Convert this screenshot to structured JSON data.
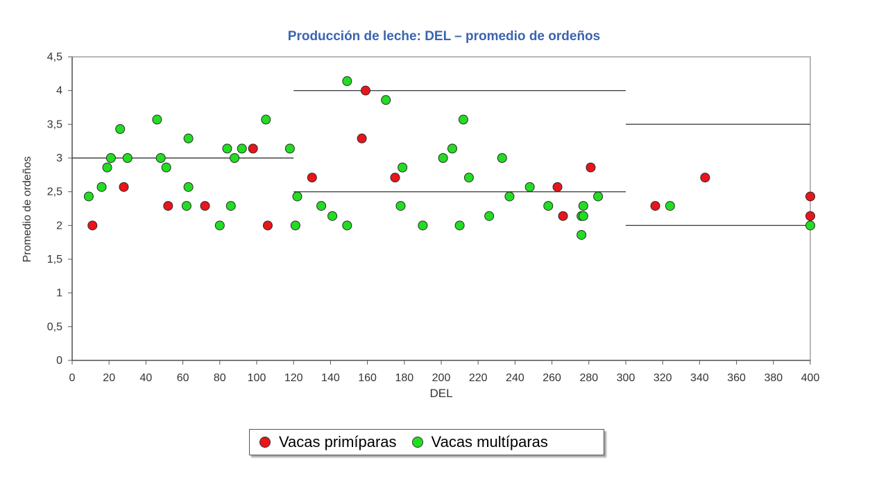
{
  "chart_data": {
    "type": "scatter",
    "title": "Producción de leche: DEL – promedio de ordeños",
    "xlabel": "DEL",
    "ylabel": "Promedio de ordeños",
    "xlim": [
      0,
      400
    ],
    "ylim": [
      0,
      4.5
    ],
    "x_ticks": [
      "0",
      "20",
      "40",
      "60",
      "80",
      "100",
      "120",
      "140",
      "160",
      "180",
      "200",
      "220",
      "240",
      "260",
      "280",
      "300",
      "320",
      "340",
      "360",
      "380",
      "400"
    ],
    "y_ticks": [
      "0",
      "0,5",
      "1",
      "1,5",
      "2",
      "2,5",
      "3",
      "3,5",
      "4",
      "4,5"
    ],
    "grid": false,
    "legend_position": "bottom-center",
    "series": [
      {
        "name": "Vacas primíparas",
        "color": "#e8151b",
        "points": [
          [
            11,
            2.0
          ],
          [
            28,
            2.57
          ],
          [
            52,
            2.29
          ],
          [
            72,
            2.29
          ],
          [
            98,
            3.14
          ],
          [
            106,
            2.0
          ],
          [
            130,
            2.71
          ],
          [
            157,
            3.29
          ],
          [
            159,
            4.0
          ],
          [
            175,
            2.71
          ],
          [
            263,
            2.57
          ],
          [
            266,
            2.14
          ],
          [
            281,
            2.86
          ],
          [
            316,
            2.29
          ],
          [
            343,
            2.71
          ],
          [
            400,
            2.43
          ],
          [
            400,
            2.14
          ]
        ]
      },
      {
        "name": "Vacas multíparas",
        "color": "#22dd22",
        "points": [
          [
            9,
            2.43
          ],
          [
            16,
            2.57
          ],
          [
            19,
            2.86
          ],
          [
            21,
            3.0
          ],
          [
            26,
            3.43
          ],
          [
            30,
            3.0
          ],
          [
            46,
            3.57
          ],
          [
            48,
            3.0
          ],
          [
            51,
            2.86
          ],
          [
            62,
            2.29
          ],
          [
            63,
            2.57
          ],
          [
            63,
            3.29
          ],
          [
            80,
            2.0
          ],
          [
            84,
            3.14
          ],
          [
            86,
            2.29
          ],
          [
            88,
            3.0
          ],
          [
            92,
            3.14
          ],
          [
            105,
            3.57
          ],
          [
            118,
            3.14
          ],
          [
            121,
            2.0
          ],
          [
            122,
            2.43
          ],
          [
            135,
            2.29
          ],
          [
            141,
            2.14
          ],
          [
            149,
            2.0
          ],
          [
            149,
            4.14
          ],
          [
            170,
            3.86
          ],
          [
            178,
            2.29
          ],
          [
            179,
            2.86
          ],
          [
            190,
            2.0
          ],
          [
            201,
            3.0
          ],
          [
            206,
            3.14
          ],
          [
            210,
            2.0
          ],
          [
            212,
            3.57
          ],
          [
            215,
            2.71
          ],
          [
            226,
            2.14
          ],
          [
            233,
            3.0
          ],
          [
            237,
            2.43
          ],
          [
            248,
            2.57
          ],
          [
            258,
            2.29
          ],
          [
            276,
            1.86
          ],
          [
            276,
            2.14
          ],
          [
            277,
            2.29
          ],
          [
            277,
            2.14
          ],
          [
            285,
            2.43
          ],
          [
            324,
            2.29
          ],
          [
            400,
            2.0
          ]
        ]
      }
    ],
    "reference_lines": [
      {
        "x_start": 0,
        "x_end": 120,
        "y": 3.0
      },
      {
        "x_start": 120,
        "x_end": 300,
        "y": 4.0
      },
      {
        "x_start": 120,
        "x_end": 300,
        "y": 2.5
      },
      {
        "x_start": 300,
        "x_end": 400,
        "y": 3.5
      },
      {
        "x_start": 300,
        "x_end": 400,
        "y": 2.0
      }
    ]
  }
}
